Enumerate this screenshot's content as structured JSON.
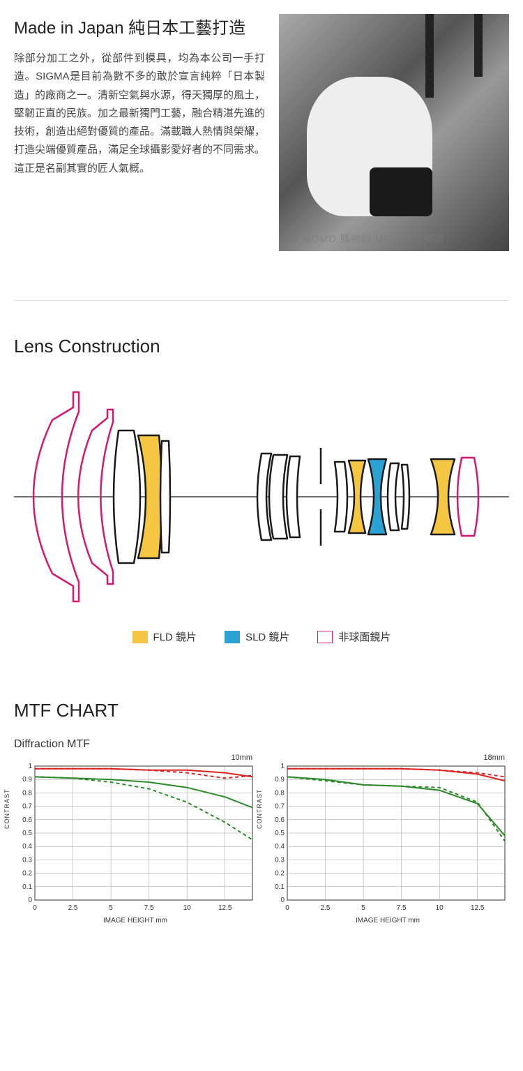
{
  "section1": {
    "title": "Made in Japan 純日本工藝打造",
    "body": "除部分加工之外，從部件到模具，均為本公司一手打造。SIGMA是目前為數不多的敢於宣言純粹「日本製造」的廠商之一。清新空氣與水源，得天獨厚的風土，堅韌正直的民族。加之最新獨門工藝，融合精湛先進的技術，創造出絕對優質的產品。滿載職人熱情與榮耀，打造尖端優質產品，滿足全球攝影愛好者的不同需求。這正是名副其實的匠人氣概。",
    "watermark": "MOMO 購物網  MOMO 購物網  MOMO 購物網"
  },
  "section2": {
    "title": "Lens Construction",
    "legend": {
      "fld": "FLD 鏡片",
      "sld": "SLD 鏡片",
      "asph": "非球面鏡片"
    },
    "colors": {
      "fld": "#f4c642",
      "sld": "#2aa3d4",
      "asph_stroke": "#d6186e",
      "element_stroke": "#1a1a1a",
      "axis": "#1a1a1a"
    }
  },
  "section3": {
    "title": "MTF CHART",
    "subtitle": "Diffraction MTF",
    "charts": [
      {
        "focal_label": "10mm",
        "ylabel": "CONTRAST",
        "xlabel": "IMAGE HEIGHT  mm",
        "ylim": [
          0,
          1
        ],
        "ytick_step": 0.1,
        "xlim": [
          0,
          14.3
        ],
        "xticks": [
          0,
          2.5,
          5,
          7.5,
          10,
          12.5
        ],
        "grid_color": "#999",
        "background": "#ffffff",
        "lines": [
          {
            "color": "#d22",
            "dash": "none",
            "width": 2,
            "pts": [
              [
                0,
                0.98
              ],
              [
                2.5,
                0.98
              ],
              [
                5,
                0.98
              ],
              [
                7.5,
                0.97
              ],
              [
                10,
                0.97
              ],
              [
                12.5,
                0.95
              ],
              [
                14.3,
                0.92
              ]
            ]
          },
          {
            "color": "#d22",
            "dash": "5,4",
            "width": 2,
            "pts": [
              [
                0,
                0.98
              ],
              [
                2.5,
                0.98
              ],
              [
                5,
                0.98
              ],
              [
                7.5,
                0.97
              ],
              [
                10,
                0.95
              ],
              [
                12.5,
                0.91
              ],
              [
                14.3,
                0.93
              ]
            ]
          },
          {
            "color": "#2a8a2a",
            "dash": "none",
            "width": 2,
            "pts": [
              [
                0,
                0.92
              ],
              [
                2.5,
                0.91
              ],
              [
                5,
                0.9
              ],
              [
                7.5,
                0.88
              ],
              [
                10,
                0.84
              ],
              [
                12.5,
                0.77
              ],
              [
                14.3,
                0.69
              ]
            ]
          },
          {
            "color": "#2a8a2a",
            "dash": "5,4",
            "width": 2,
            "pts": [
              [
                0,
                0.92
              ],
              [
                2.5,
                0.91
              ],
              [
                5,
                0.88
              ],
              [
                7.5,
                0.83
              ],
              [
                10,
                0.73
              ],
              [
                12.5,
                0.58
              ],
              [
                14.3,
                0.45
              ]
            ]
          }
        ]
      },
      {
        "focal_label": "18mm",
        "ylabel": "CONTRAST",
        "xlabel": "IMAGE HEIGHT  mm",
        "ylim": [
          0,
          1
        ],
        "ytick_step": 0.1,
        "xlim": [
          0,
          14.3
        ],
        "xticks": [
          0,
          2.5,
          5,
          7.5,
          10,
          12.5
        ],
        "grid_color": "#999",
        "background": "#ffffff",
        "lines": [
          {
            "color": "#d22",
            "dash": "none",
            "width": 2,
            "pts": [
              [
                0,
                0.98
              ],
              [
                2.5,
                0.98
              ],
              [
                5,
                0.98
              ],
              [
                7.5,
                0.98
              ],
              [
                10,
                0.97
              ],
              [
                12.5,
                0.94
              ],
              [
                14.3,
                0.89
              ]
            ]
          },
          {
            "color": "#d22",
            "dash": "5,4",
            "width": 2,
            "pts": [
              [
                0,
                0.98
              ],
              [
                2.5,
                0.98
              ],
              [
                5,
                0.98
              ],
              [
                7.5,
                0.98
              ],
              [
                10,
                0.97
              ],
              [
                12.5,
                0.95
              ],
              [
                14.3,
                0.92
              ]
            ]
          },
          {
            "color": "#2a8a2a",
            "dash": "none",
            "width": 2,
            "pts": [
              [
                0,
                0.92
              ],
              [
                2.5,
                0.9
              ],
              [
                5,
                0.86
              ],
              [
                7.5,
                0.85
              ],
              [
                10,
                0.82
              ],
              [
                12.5,
                0.72
              ],
              [
                14.3,
                0.48
              ]
            ]
          },
          {
            "color": "#2a8a2a",
            "dash": "5,4",
            "width": 2,
            "pts": [
              [
                0,
                0.92
              ],
              [
                2.5,
                0.89
              ],
              [
                5,
                0.86
              ],
              [
                7.5,
                0.85
              ],
              [
                10,
                0.84
              ],
              [
                12.5,
                0.73
              ],
              [
                14.3,
                0.44
              ]
            ]
          }
        ]
      }
    ]
  }
}
